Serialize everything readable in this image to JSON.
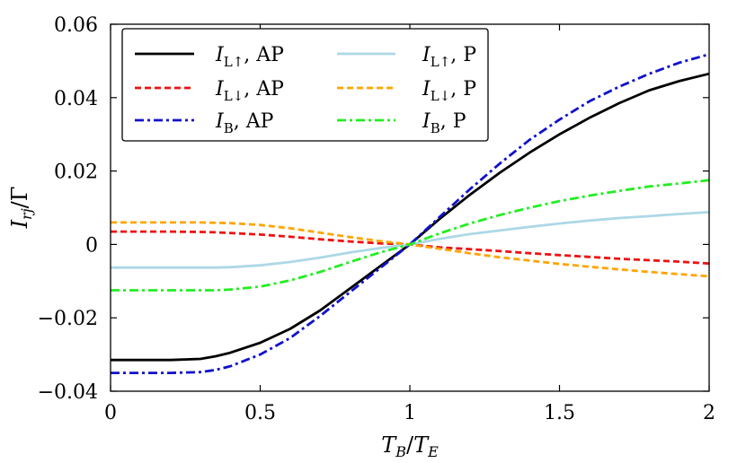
{
  "chart_data": {
    "type": "line",
    "title": "",
    "xlabel": "T_B/T_E",
    "ylabel": "I_rj/Γ",
    "xlim": [
      0,
      2
    ],
    "ylim": [
      -0.04,
      0.06
    ],
    "xticks": [
      0,
      0.5,
      1,
      1.5,
      2
    ],
    "xtick_labels": [
      "0",
      "0.5",
      "1",
      "1.5",
      "2"
    ],
    "yticks": [
      -0.04,
      -0.02,
      0,
      0.02,
      0.04,
      0.06
    ],
    "ytick_labels": [
      "−0.04",
      "−0.02",
      "0",
      "0.02",
      "0.04",
      "0.06"
    ],
    "x": [
      0,
      0.1,
      0.2,
      0.3,
      0.35,
      0.4,
      0.5,
      0.6,
      0.7,
      0.8,
      0.9,
      1.0,
      1.1,
      1.2,
      1.3,
      1.4,
      1.5,
      1.6,
      1.7,
      1.8,
      1.9,
      2.0
    ],
    "legend_position": "top-left",
    "series": [
      {
        "name": "I_L↑, AP",
        "label_main": "I",
        "label_sub": "L↑",
        "label_rest": ", AP",
        "color": "#000000",
        "style": "solid",
        "values": [
          -0.0315,
          -0.0315,
          -0.0315,
          -0.0312,
          -0.0305,
          -0.0295,
          -0.0268,
          -0.023,
          -0.018,
          -0.012,
          -0.006,
          0.0,
          0.007,
          0.0135,
          0.0195,
          0.025,
          0.03,
          0.0345,
          0.0385,
          0.042,
          0.0445,
          0.0465
        ]
      },
      {
        "name": "I_L↓, AP",
        "label_main": "I",
        "label_sub": "L↓",
        "label_rest": ", AP",
        "color": "#ee1111",
        "style": "dashed",
        "values": [
          0.0035,
          0.0035,
          0.0035,
          0.0034,
          0.0033,
          0.0031,
          0.0027,
          0.0021,
          0.0014,
          0.0008,
          0.0003,
          0.0,
          -0.0008,
          -0.0013,
          -0.0018,
          -0.0024,
          -0.0029,
          -0.0034,
          -0.0039,
          -0.0043,
          -0.0047,
          -0.0052
        ]
      },
      {
        "name": "I_B, AP",
        "label_main": "I",
        "label_sub": "B",
        "label_rest": ", AP",
        "color": "#1111cc",
        "style": "dashdot",
        "values": [
          -0.035,
          -0.035,
          -0.035,
          -0.0348,
          -0.0342,
          -0.0332,
          -0.03,
          -0.0255,
          -0.0195,
          -0.013,
          -0.0065,
          0.0,
          0.0075,
          0.015,
          0.022,
          0.0285,
          0.034,
          0.039,
          0.043,
          0.0465,
          0.0495,
          0.0518
        ]
      },
      {
        "name": "I_L↑, P",
        "label_main": "I",
        "label_sub": "L↑",
        "label_rest": ", P",
        "color": "#add8e6",
        "style": "solid",
        "values": [
          -0.0063,
          -0.0063,
          -0.0063,
          -0.0063,
          -0.0063,
          -0.0062,
          -0.0057,
          -0.0048,
          -0.0036,
          -0.0022,
          -0.001,
          0.0,
          0.0015,
          0.0028,
          0.0038,
          0.0048,
          0.0057,
          0.0065,
          0.0072,
          0.0077,
          0.0083,
          0.0088
        ]
      },
      {
        "name": "I_L↓, P",
        "label_main": "I",
        "label_sub": "L↓",
        "label_rest": ", P",
        "color": "#ffa500",
        "style": "dashed",
        "values": [
          0.006,
          0.006,
          0.006,
          0.006,
          0.0059,
          0.0058,
          0.0053,
          0.0044,
          0.0032,
          0.002,
          0.0009,
          0.0,
          -0.0012,
          -0.0024,
          -0.0035,
          -0.0044,
          -0.0053,
          -0.0061,
          -0.0068,
          -0.0075,
          -0.0081,
          -0.0087
        ]
      },
      {
        "name": "I_B, P",
        "label_main": "I",
        "label_sub": "B",
        "label_rest": ", P",
        "color": "#22ee22",
        "style": "dashdot",
        "values": [
          -0.0125,
          -0.0125,
          -0.0125,
          -0.0125,
          -0.0125,
          -0.0123,
          -0.0115,
          -0.0098,
          -0.0075,
          -0.0048,
          -0.0022,
          0.0,
          0.003,
          0.0057,
          0.008,
          0.01,
          0.0118,
          0.0133,
          0.0146,
          0.0158,
          0.0166,
          0.0175
        ]
      }
    ]
  }
}
